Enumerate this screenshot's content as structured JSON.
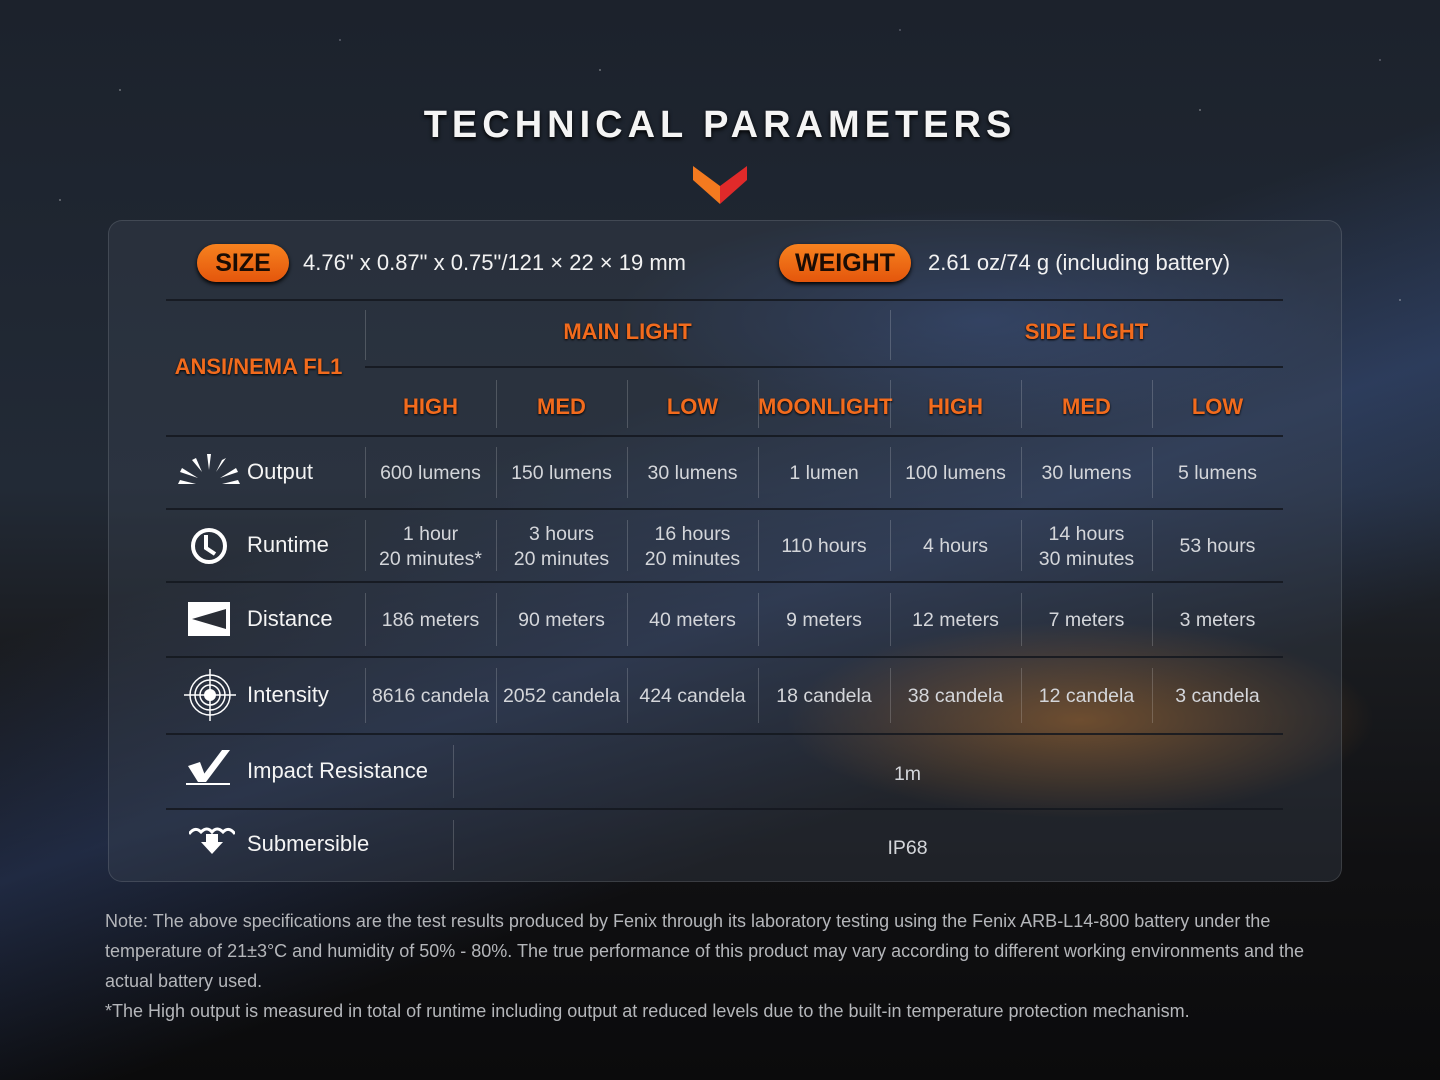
{
  "title": "TECHNICAL PARAMETERS",
  "colors": {
    "accent": "#f26b1d",
    "chevron_left": "#f47a1f",
    "chevron_right": "#e02a2a"
  },
  "size": {
    "label": "SIZE",
    "value": "4.76\" x 0.87\" x 0.75\"/121 × 22 × 19 mm"
  },
  "weight": {
    "label": "WEIGHT",
    "value": "2.61 oz/74 g (including battery)"
  },
  "table": {
    "standard": "ANSI/NEMA FL1",
    "groups": [
      "MAIN LIGHT",
      "SIDE LIGHT"
    ],
    "modes": [
      "HIGH",
      "MED",
      "LOW",
      "MOONLIGHT",
      "HIGH",
      "MED",
      "LOW"
    ],
    "rows": [
      {
        "icon": "sunburst-icon",
        "label": "Output",
        "values": [
          "600 lumens",
          "150 lumens",
          "30 lumens",
          "1 lumen",
          "100 lumens",
          "30 lumens",
          "5 lumens"
        ]
      },
      {
        "icon": "clock-icon",
        "label": "Runtime",
        "values": [
          "1 hour\n20 minutes*",
          "3 hours\n20 minutes",
          "16 hours\n20 minutes",
          "110 hours",
          "4 hours",
          "14 hours\n30 minutes",
          "53 hours"
        ]
      },
      {
        "icon": "distance-icon",
        "label": "Distance",
        "values": [
          "186 meters",
          "90 meters",
          "40 meters",
          "9 meters",
          "12 meters",
          "7 meters",
          "3 meters"
        ]
      },
      {
        "icon": "target-icon",
        "label": "Intensity",
        "values": [
          "8616 candela",
          "2052 candela",
          "424 candela",
          "18 candela",
          "38 candela",
          "12 candela",
          "3 candela"
        ]
      }
    ],
    "impact": {
      "icon": "impact-icon",
      "label": "Impact Resistance",
      "value": "1m"
    },
    "submersible": {
      "icon": "submersible-icon",
      "label": "Submersible",
      "value": "IP68"
    }
  },
  "notes": [
    "Note: The above specifications are the test results produced by Fenix through its laboratory testing using the Fenix ARB-L14-800 battery under the temperature of 21±3°C and humidity of 50% - 80%. The true performance of this product may vary according to different working environments and the actual battery used.",
    "*The High output is measured in total of runtime including output at reduced levels due to the built-in temperature protection mechanism."
  ]
}
